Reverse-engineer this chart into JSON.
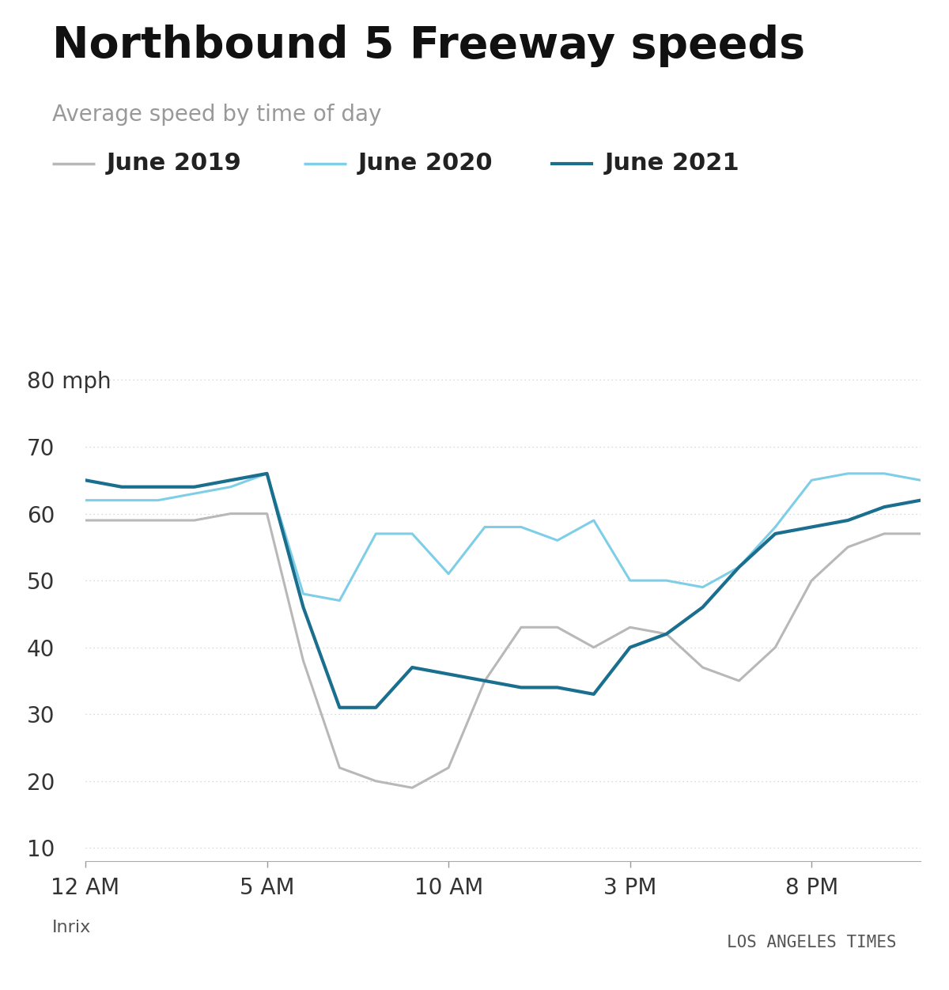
{
  "title": "Northbound 5 Freeway speeds",
  "subtitle": "Average speed by time of day",
  "source": "Inrix",
  "credit": "LOS ANGELES TIMES",
  "colors": {
    "june2019": "#b8b8b8",
    "june2020": "#7ecee8",
    "june2021": "#1a6e8e"
  },
  "legend_labels": [
    "June 2019",
    "June 2020",
    "June 2021"
  ],
  "x_tick_labels": [
    "12 AM",
    "5 AM",
    "10 AM",
    "3 PM",
    "8 PM"
  ],
  "x_tick_positions": [
    0,
    5,
    10,
    15,
    20
  ],
  "ylim": [
    8,
    85
  ],
  "yticks": [
    10,
    20,
    30,
    40,
    50,
    60,
    70,
    80
  ],
  "background_color": "#ffffff",
  "hours": [
    0,
    1,
    2,
    3,
    4,
    5,
    6,
    7,
    8,
    9,
    10,
    11,
    12,
    13,
    14,
    15,
    16,
    17,
    18,
    19,
    20,
    21,
    22,
    23
  ],
  "june2019_y": [
    59,
    59,
    59,
    59,
    60,
    60,
    38,
    22,
    20,
    19,
    22,
    35,
    43,
    43,
    40,
    43,
    42,
    37,
    35,
    40,
    50,
    55,
    57,
    57
  ],
  "june2020_y": [
    62,
    62,
    62,
    63,
    64,
    66,
    48,
    47,
    57,
    57,
    51,
    58,
    58,
    56,
    59,
    50,
    50,
    49,
    52,
    58,
    65,
    66,
    66,
    65
  ],
  "june2021_y": [
    65,
    64,
    64,
    64,
    65,
    66,
    46,
    31,
    31,
    37,
    36,
    35,
    34,
    34,
    33,
    40,
    42,
    46,
    52,
    57,
    58,
    59,
    61,
    62
  ],
  "title_fontsize": 40,
  "subtitle_fontsize": 20,
  "legend_fontsize": 22,
  "tick_fontsize": 20,
  "source_fontsize": 16,
  "credit_fontsize": 15
}
